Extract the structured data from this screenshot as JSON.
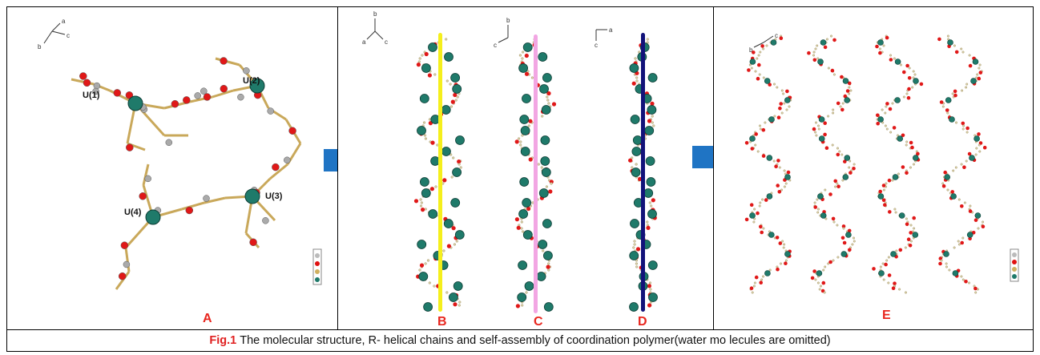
{
  "panels": {
    "a": {
      "label": "A",
      "atoms": [
        "U(1)",
        "U(2)",
        "U(3)",
        "U(4)"
      ],
      "axes": [
        "a",
        "b",
        "c"
      ]
    },
    "b": {
      "label": "B",
      "axes": [
        "b",
        "a",
        "c"
      ],
      "rod_color": "#f5ef1c"
    },
    "c": {
      "label": "C",
      "axes": [
        "b",
        "c"
      ],
      "rod_color": "#f2a6e3"
    },
    "d": {
      "label": "D",
      "axes": [
        "a",
        "c"
      ],
      "rod_color": "#12127a"
    },
    "e": {
      "label": "E",
      "axes": [
        "b",
        "c"
      ]
    }
  },
  "arrow_color": "#1f74c4",
  "caption": {
    "fig_label": "Fig.1",
    "text": "The molecular structure, R- helical chains and self-assembly of coordination polymer(water mo lecules are omitted)"
  }
}
